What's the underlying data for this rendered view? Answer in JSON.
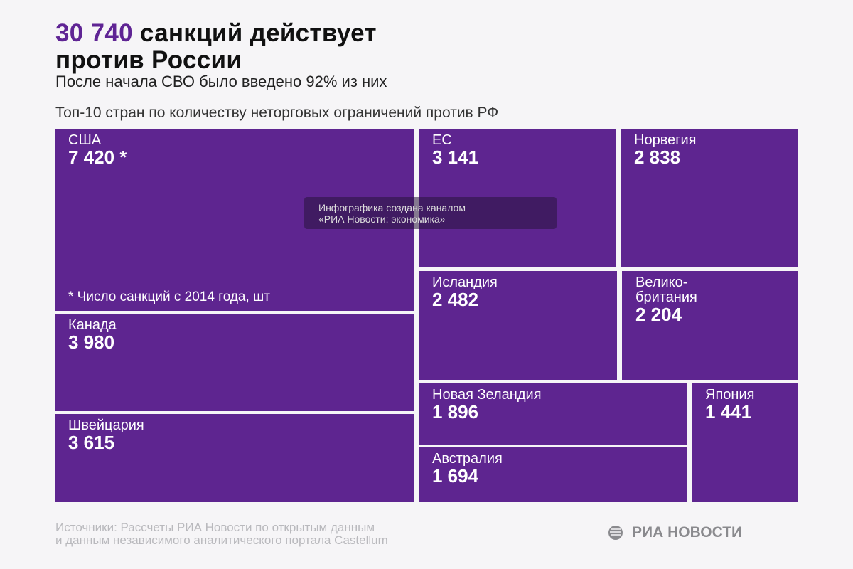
{
  "header": {
    "title_number": "30 740",
    "title_rest": " санкций действует",
    "title_line2": "против России",
    "subtitle": "После начала СВО было введено 92% из них",
    "caption": "Топ-10 стран по количеству неторговых ограничений против РФ"
  },
  "chart_data": {
    "type": "treemap",
    "title": "Топ-10 стран по количеству неторговых ограничений против РФ",
    "categories": [
      "США",
      "Канада",
      "Швейцария",
      "ЕС",
      "Норвегия",
      "Исландия",
      "Велико-\nбритания",
      "Новая Зеландия",
      "Австралия",
      "Япония"
    ],
    "values": [
      7420,
      3980,
      3615,
      3141,
      2838,
      2482,
      2204,
      1896,
      1694,
      1441
    ],
    "value_labels": [
      "7 420 *",
      "3 980",
      "3 615",
      "3 141",
      "2 838",
      "2 482",
      "2 204",
      "1 896",
      "1 694",
      "1 441"
    ],
    "color": "#5e2590",
    "annotation": "* Число санкций с 2014 года, шт"
  },
  "watermark": {
    "line1": "Инфографика создана каналом",
    "line2": "«РИА Новости: экономика»"
  },
  "footer": {
    "source_line1": "Источники: Рассчеты РИА Новости по открытым данным",
    "source_line2": "и данным независимого аналитического портала Castellum",
    "logo": "РИА НОВОСТИ"
  }
}
